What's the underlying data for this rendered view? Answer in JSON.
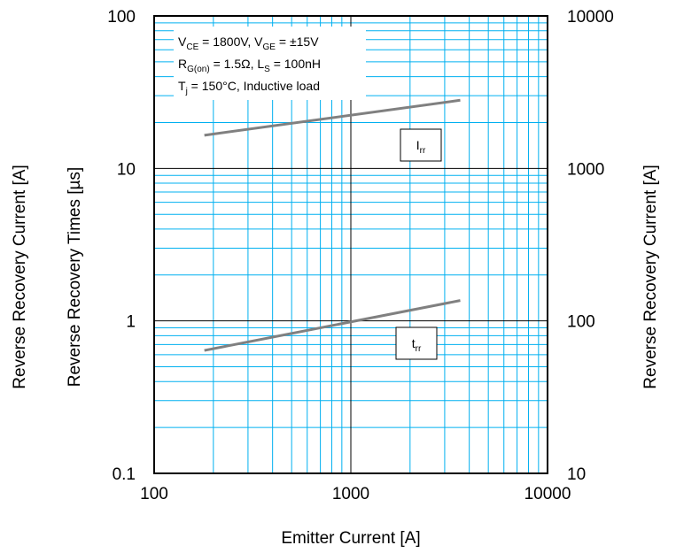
{
  "chart_data": {
    "type": "line",
    "xlabel": "Emitter Current [A]",
    "ylabel_left": "Reverse Recovery Times [µs]",
    "ylabel_left_outer": "Reverse Recovery Current [A]",
    "ylabel_right": "Reverse Recovery Current [A]",
    "x_scale": "log",
    "y_scale": "log",
    "xlim": [
      100,
      10000
    ],
    "ylim_left": [
      0.1,
      100
    ],
    "ylim_right": [
      10,
      10000
    ],
    "x_ticks": [
      "100",
      "1000",
      "10000"
    ],
    "y_ticks_left": [
      "0.1",
      "1",
      "10",
      "100"
    ],
    "y_ticks_right": [
      "10",
      "100",
      "1000",
      "10000"
    ],
    "grid": true,
    "conditions": [
      {
        "parts": [
          [
            "V",
            ""
          ],
          [
            "CE",
            "sub"
          ],
          [
            " = 1800V, V",
            ""
          ],
          [
            "GE",
            "sub"
          ],
          [
            " = ±15V",
            ""
          ]
        ]
      },
      {
        "parts": [
          [
            "R",
            ""
          ],
          [
            "G(on)",
            "sub"
          ],
          [
            " = 1.5Ω, L",
            ""
          ],
          [
            "S",
            "sub"
          ],
          [
            " = 100nH",
            ""
          ]
        ]
      },
      {
        "parts": [
          [
            "T",
            ""
          ],
          [
            "j",
            "sub"
          ],
          [
            " = 150°C, Inductive load",
            ""
          ]
        ]
      }
    ],
    "series": [
      {
        "name_main": "I",
        "name_sub": "rr",
        "axis": "right",
        "color": "#808080",
        "x": [
          180,
          3600
        ],
        "y": [
          1650,
          2800
        ]
      },
      {
        "name_main": "t",
        "name_sub": "rr",
        "axis": "left",
        "color": "#808080",
        "x": [
          180,
          3600
        ],
        "y": [
          0.64,
          1.36
        ]
      }
    ]
  }
}
